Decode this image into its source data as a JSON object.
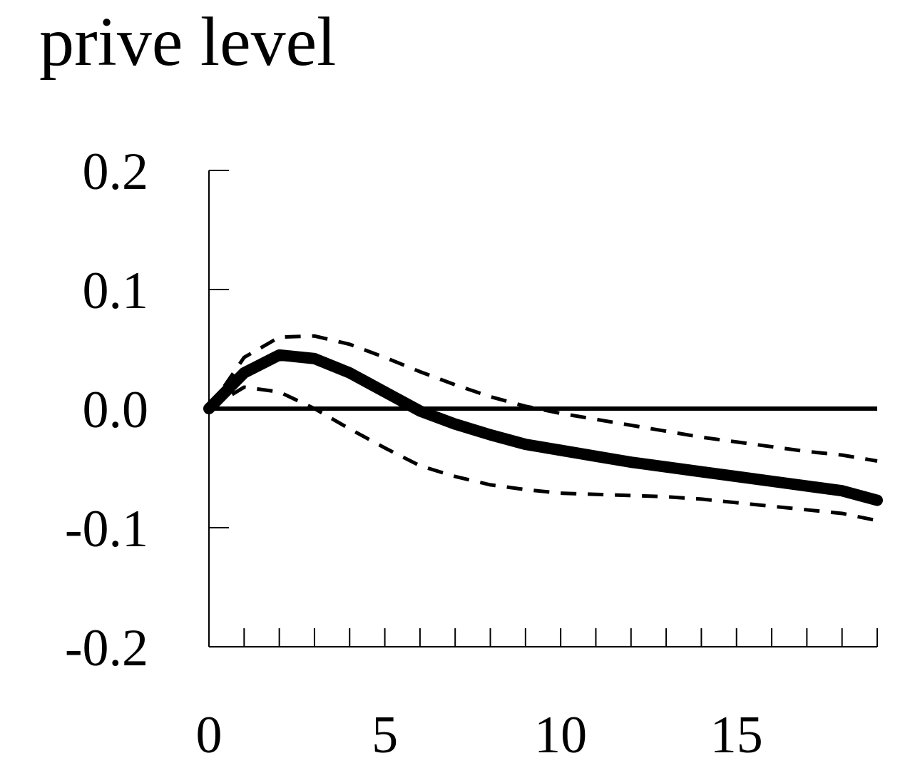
{
  "chart_data": {
    "type": "line",
    "title": "prive level",
    "xlabel": "",
    "ylabel": "",
    "xlim": [
      0,
      19
    ],
    "ylim": [
      -0.2,
      0.2
    ],
    "x_ticks": [
      0,
      5,
      10,
      15
    ],
    "x_tick_labels": [
      "0",
      "5",
      "10",
      "15"
    ],
    "y_ticks": [
      -0.2,
      -0.1,
      0.0,
      0.1,
      0.2
    ],
    "y_tick_labels": [
      "-0.2",
      "-0.1",
      "0.0",
      "0.1",
      "0.2"
    ],
    "grid": false,
    "legend": "none",
    "zero_line": true,
    "x": [
      0,
      1,
      2,
      3,
      4,
      5,
      6,
      7,
      8,
      9,
      10,
      11,
      12,
      13,
      14,
      15,
      16,
      17,
      18,
      19
    ],
    "series": [
      {
        "style": "solid-thick",
        "values": [
          0.0,
          0.03,
          0.045,
          0.042,
          0.03,
          0.014,
          -0.002,
          -0.013,
          -0.022,
          -0.03,
          -0.035,
          -0.04,
          -0.045,
          -0.049,
          -0.053,
          -0.057,
          -0.061,
          -0.065,
          -0.069,
          -0.077
        ]
      },
      {
        "style": "dashed",
        "values": [
          0.0,
          0.043,
          0.06,
          0.061,
          0.054,
          0.043,
          0.031,
          0.02,
          0.01,
          0.002,
          -0.004,
          -0.009,
          -0.014,
          -0.019,
          -0.024,
          -0.028,
          -0.032,
          -0.036,
          -0.039,
          -0.044
        ]
      },
      {
        "style": "dashed",
        "values": [
          0.0,
          0.018,
          0.014,
          0.0,
          -0.017,
          -0.033,
          -0.048,
          -0.057,
          -0.064,
          -0.068,
          -0.071,
          -0.072,
          -0.073,
          -0.074,
          -0.076,
          -0.079,
          -0.082,
          -0.085,
          -0.088,
          -0.094
        ]
      }
    ],
    "colors": {
      "line": "#000000",
      "axis": "#000000",
      "background": "#ffffff"
    }
  }
}
